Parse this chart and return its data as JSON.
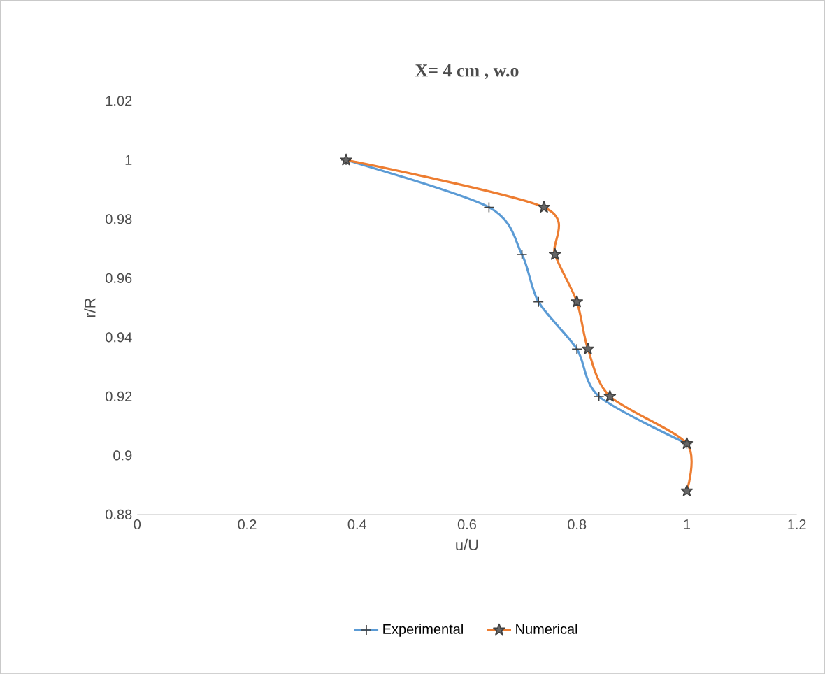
{
  "chart_data": {
    "type": "line",
    "title": "X= 4 cm , w.o",
    "xlabel": "u/U",
    "ylabel": "r/R",
    "series": [
      {
        "name": "Experimental",
        "color": "#5b9bd5",
        "marker": "cross",
        "x": [
          0.38,
          0.64,
          0.7,
          0.73,
          0.8,
          0.84,
          1.0
        ],
        "values": [
          1.0,
          0.984,
          0.968,
          0.952,
          0.936,
          0.92,
          0.904
        ]
      },
      {
        "name": "Numerical",
        "color": "#ed7d31",
        "marker": "star",
        "x": [
          0.38,
          0.74,
          0.76,
          0.8,
          0.82,
          0.86,
          1.0,
          1.0
        ],
        "values": [
          1.0,
          0.984,
          0.968,
          0.952,
          0.936,
          0.92,
          0.904,
          0.888
        ]
      }
    ],
    "xlim": [
      0,
      1.2
    ],
    "xticks": [
      0,
      0.2,
      0.4,
      0.6,
      0.8,
      1,
      1.2
    ],
    "ylim": [
      0.88,
      1.02
    ],
    "yticks": [
      0.88,
      0.9,
      0.92,
      0.94,
      0.96,
      0.98,
      1,
      1.02
    ],
    "grid": false,
    "legend": "bottom",
    "line_style": "solid"
  }
}
